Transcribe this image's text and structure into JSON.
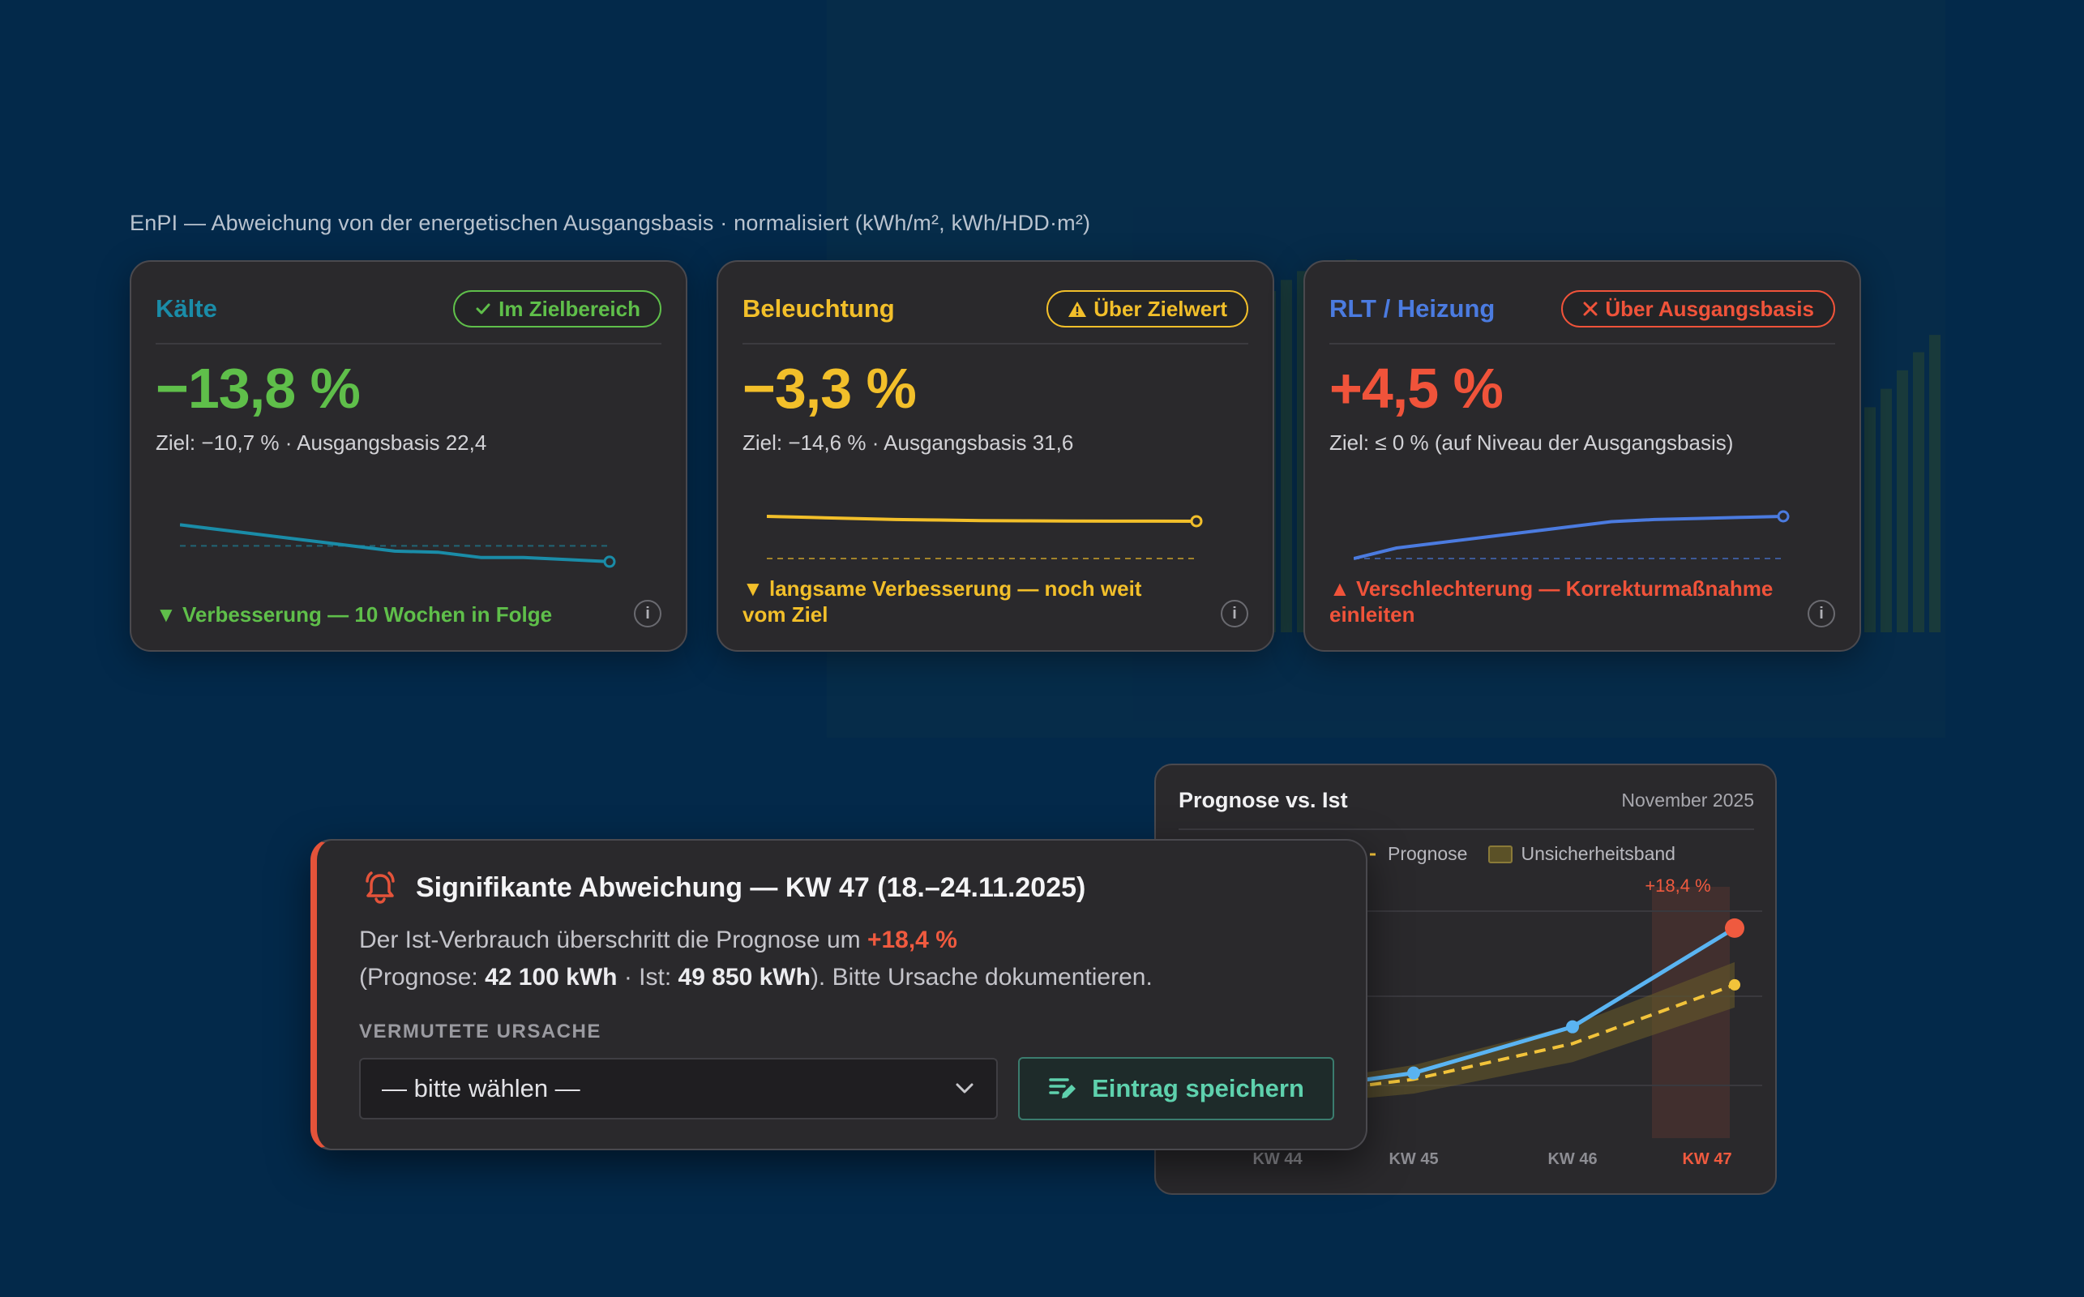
{
  "section_heading": "EnPI — Abweichung von der energetischen Ausgangsbasis · normalisiert (kWh/m², kWh/HDD·m²)",
  "cards": [
    {
      "title": "Kälte",
      "badge": "Im Zielbereich",
      "badge_icon": "check-icon",
      "value": "−13,8 %",
      "target": "Ziel: −10,7 % · Ausgangsbasis 22,4",
      "footer": "Verbesserung — 10 Wochen in Folge",
      "footer_icon": "triangle-down-icon",
      "info": "i",
      "color": "#1a8ca8",
      "status_color": "#5fbf4a",
      "spark": [
        0.62,
        0.57,
        0.52,
        0.47,
        0.42,
        0.37,
        0.36,
        0.31,
        0.31,
        0.29,
        0.27
      ],
      "spark_target": 0.42
    },
    {
      "title": "Beleuchtung",
      "badge": "Über Zielwert",
      "badge_icon": "warning-icon",
      "value": "−3,3 %",
      "target": "Ziel: −14,6 % · Ausgangsbasis 31,6",
      "footer": "langsame Verbesserung — noch weit vom Ziel",
      "footer_icon": "triangle-down-icon",
      "info": "i",
      "color": "#f2bf2a",
      "status_color": "#f2bf2a",
      "spark": [
        0.7,
        0.69,
        0.68,
        0.67,
        0.665,
        0.66,
        0.658,
        0.656,
        0.655,
        0.655,
        0.654
      ],
      "spark_target": 0.3
    },
    {
      "title": "RLT / Heizung",
      "badge": "Über Ausgangsbasis",
      "badge_icon": "x-icon",
      "value": "+4,5 %",
      "target": "Ziel: ≤ 0 % (auf Niveau der Ausgangsbasis)",
      "footer": "Verschlechterung — Korrekturmaßnahme einleiten",
      "footer_icon": "triangle-up-icon",
      "info": "i",
      "color": "#4b7be0",
      "status_color": "#f0533a",
      "spark": [
        0.3,
        0.4,
        0.45,
        0.5,
        0.55,
        0.6,
        0.65,
        0.67,
        0.68,
        0.69,
        0.7
      ],
      "spark_target": 0.3
    }
  ],
  "forecast": {
    "title": "Prognose vs. Ist",
    "date": "November 2025",
    "legend_prognose": "Prognose",
    "legend_band": "Unsicherheitsband",
    "peak_label": "+18,4 %",
    "chart_data": {
      "type": "line",
      "categories": [
        "KW 44",
        "KW 45",
        "KW 46",
        "KW 47"
      ],
      "series": [
        {
          "name": "Prognose",
          "values": [
            0.2,
            0.28,
            0.45,
            0.73
          ]
        },
        {
          "name": "",
          "values": [
            0.22,
            0.31,
            0.53,
            1.0
          ]
        }
      ],
      "band_half_width": 0.08,
      "ylim": [
        0,
        1.1
      ],
      "colors": {
        "ist": "#5ab4f2",
        "prognose": "#f2c33a",
        "band": "#6a5d2a",
        "highlight": "#ef5a3f"
      }
    }
  },
  "alert": {
    "title": "Signifikante Abweichung — KW 47 (18.–24.11.2025)",
    "line1_prefix": "Der Ist-Verbrauch überschritt die Prognose um ",
    "line1_highlight": "+18,4 %",
    "line2_open": "(Prognose: ",
    "prognose_value": "42 100 kWh",
    "line2_sep": " · Ist: ",
    "ist_value": "49 850 kWh",
    "line2_close": "). Bitte Ursache dokumentieren.",
    "cause_label": "VERMUTETE URSACHE",
    "select_value": "— bitte wählen —",
    "button_label": "Eintrag speichern",
    "bell_icon": "bell-alert-icon",
    "accent": "#e4533a"
  }
}
